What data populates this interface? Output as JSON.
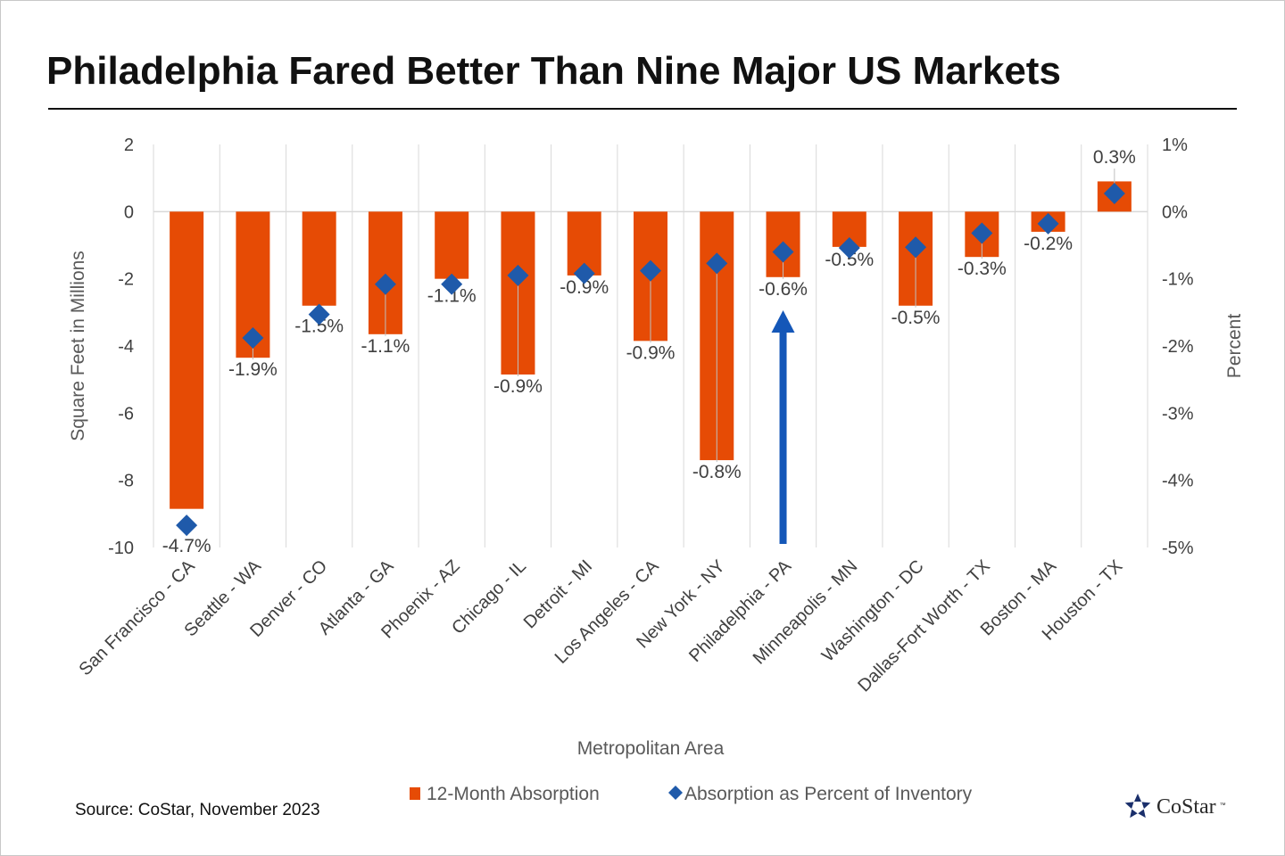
{
  "title": "Philadelphia Fared Better Than Nine Major US Markets",
  "source": "Source: CoStar, November 2023",
  "logo_text": "CoStar",
  "logo_tm": "™",
  "colors": {
    "bar": "#E64B05",
    "marker": "#1F5AAA",
    "arrow": "#1457B8",
    "grid": "#d9d9d9"
  },
  "chart_data": {
    "type": "bar",
    "xlabel": "Metropolitan Area",
    "ylabel": "Square Feet in Millions",
    "y2label": "Percent",
    "ylim": [
      -10,
      2
    ],
    "y2lim": [
      -5,
      1
    ],
    "yticks": [
      "2",
      "0",
      "-2",
      "-4",
      "-6",
      "-8",
      "-10"
    ],
    "y2ticks": [
      "1%",
      "0%",
      "-1%",
      "-2%",
      "-3%",
      "-4%",
      "-5%"
    ],
    "grid": "vertical category gridlines",
    "legend_position": "bottom",
    "categories": [
      "San Francisco - CA",
      "Seattle - WA",
      "Denver - CO",
      "Atlanta - GA",
      "Phoenix - AZ",
      "Chicago - IL",
      "Detroit - MI",
      "Los Angeles - CA",
      "New York - NY",
      "Philadelphia - PA",
      "Minneapolis - MN",
      "Washington - DC",
      "Dallas-Fort Worth - TX",
      "Boston - MA",
      "Houston - TX"
    ],
    "series": [
      {
        "name": "12-Month Absorption",
        "kind": "bar",
        "axis": "left",
        "values": [
          -8.85,
          -4.35,
          -2.8,
          -3.65,
          -2.0,
          -4.85,
          -1.9,
          -3.85,
          -7.4,
          -1.95,
          -1.05,
          -2.8,
          -1.35,
          -0.6,
          0.9
        ]
      },
      {
        "name": "Absorption as Percent of Inventory",
        "kind": "marker",
        "axis": "right",
        "values": [
          -4.67,
          -1.88,
          -1.53,
          -1.08,
          -1.08,
          -0.95,
          -0.92,
          -0.88,
          -0.77,
          -0.6,
          -0.54,
          -0.53,
          -0.32,
          -0.18,
          0.27
        ],
        "labels": [
          "-4.7%",
          "-1.9%",
          "-1.5%",
          "-1.1%",
          "-1.1%",
          "-0.9%",
          "-0.9%",
          "-0.9%",
          "-0.8%",
          "-0.6%",
          "-0.5%",
          "-0.5%",
          "-0.3%",
          "-0.2%",
          "0.3%"
        ]
      }
    ],
    "annotation": {
      "type": "arrow",
      "category": "Philadelphia - PA"
    }
  }
}
